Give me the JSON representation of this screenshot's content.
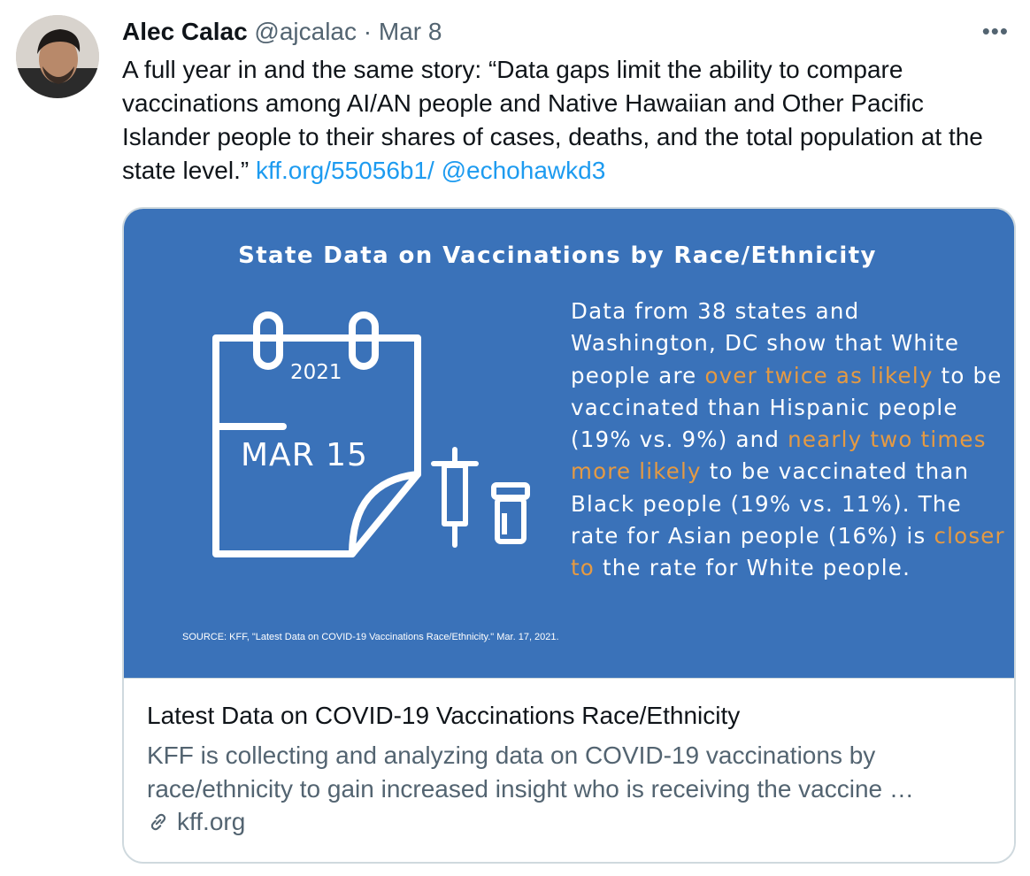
{
  "tweet": {
    "author_name": "Alec Calac",
    "handle": "@ajcalac",
    "separator": "·",
    "date": "Mar 8",
    "more_label": "•••",
    "text_plain": "A full year in and the same story: “Data gaps limit the ability to compare vaccinations among AI/AN people and Native Hawaiian and Other Pacific Islander people to their shares of cases, deaths, and the total population at the state level.”",
    "link_text": "kff.org/55056b1/",
    "mention_text": "@echohawkd3"
  },
  "card": {
    "image": {
      "title": "State Data on Vaccinations by Race/Ethnicity",
      "calendar_year": "2021",
      "calendar_date": "MAR 15",
      "text_segments": [
        {
          "text": "Data from 38 states and Washington, DC show that White people are ",
          "highlight": false
        },
        {
          "text": "over twice as likely",
          "highlight": true
        },
        {
          "text": " to be vaccinated than Hispanic people (19% vs. 9%) and ",
          "highlight": false
        },
        {
          "text": "nearly two times more likely",
          "highlight": true
        },
        {
          "text": " to be vaccinated than Black people (19% vs. 11%). The rate for Asian people (16%) is ",
          "highlight": false
        },
        {
          "text": "closer to",
          "highlight": true
        },
        {
          "text": " the rate for White people.",
          "highlight": false
        }
      ],
      "source": "SOURCE: KFF, \"Latest Data on COVID-19 Vaccinations Race/Ethnicity.\" Mar. 17, 2021."
    },
    "title": "Latest Data on COVID-19 Vaccinations Race/Ethnicity",
    "description": "KFF is collecting and analyzing data on COVID-19 vaccinations by race/ethnicity to gain increased insight who is receiving the vaccine …",
    "domain": "kff.org"
  },
  "colors": {
    "link": "#1d9bf0",
    "card_background": "#3a72b9",
    "highlight": "#e59a43"
  }
}
